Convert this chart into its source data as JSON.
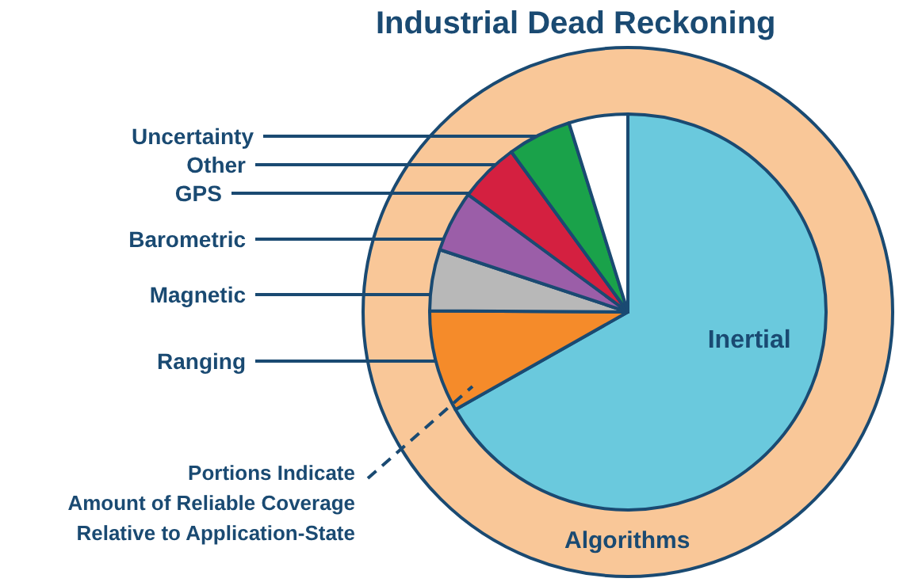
{
  "chart_data": {
    "type": "pie",
    "title": "Industrial Dead Reckoning",
    "categories": [
      "Inertial",
      "Ranging",
      "Magnetic",
      "Barometric",
      "GPS",
      "Other",
      "Uncertainty"
    ],
    "values": [
      66.8,
      8.3,
      5.0,
      5.0,
      4.9,
      5.2,
      4.8
    ],
    "colors": [
      "#6ac9dd",
      "#f58b2a",
      "#b8b8b8",
      "#9b5ea8",
      "#d42040",
      "#1aa24a",
      "#ffffff"
    ],
    "annotations": [
      "Algorithms",
      "Portions Indicate\nAmount of Reliable Coverage\nRelative to Application-State"
    ]
  }
}
